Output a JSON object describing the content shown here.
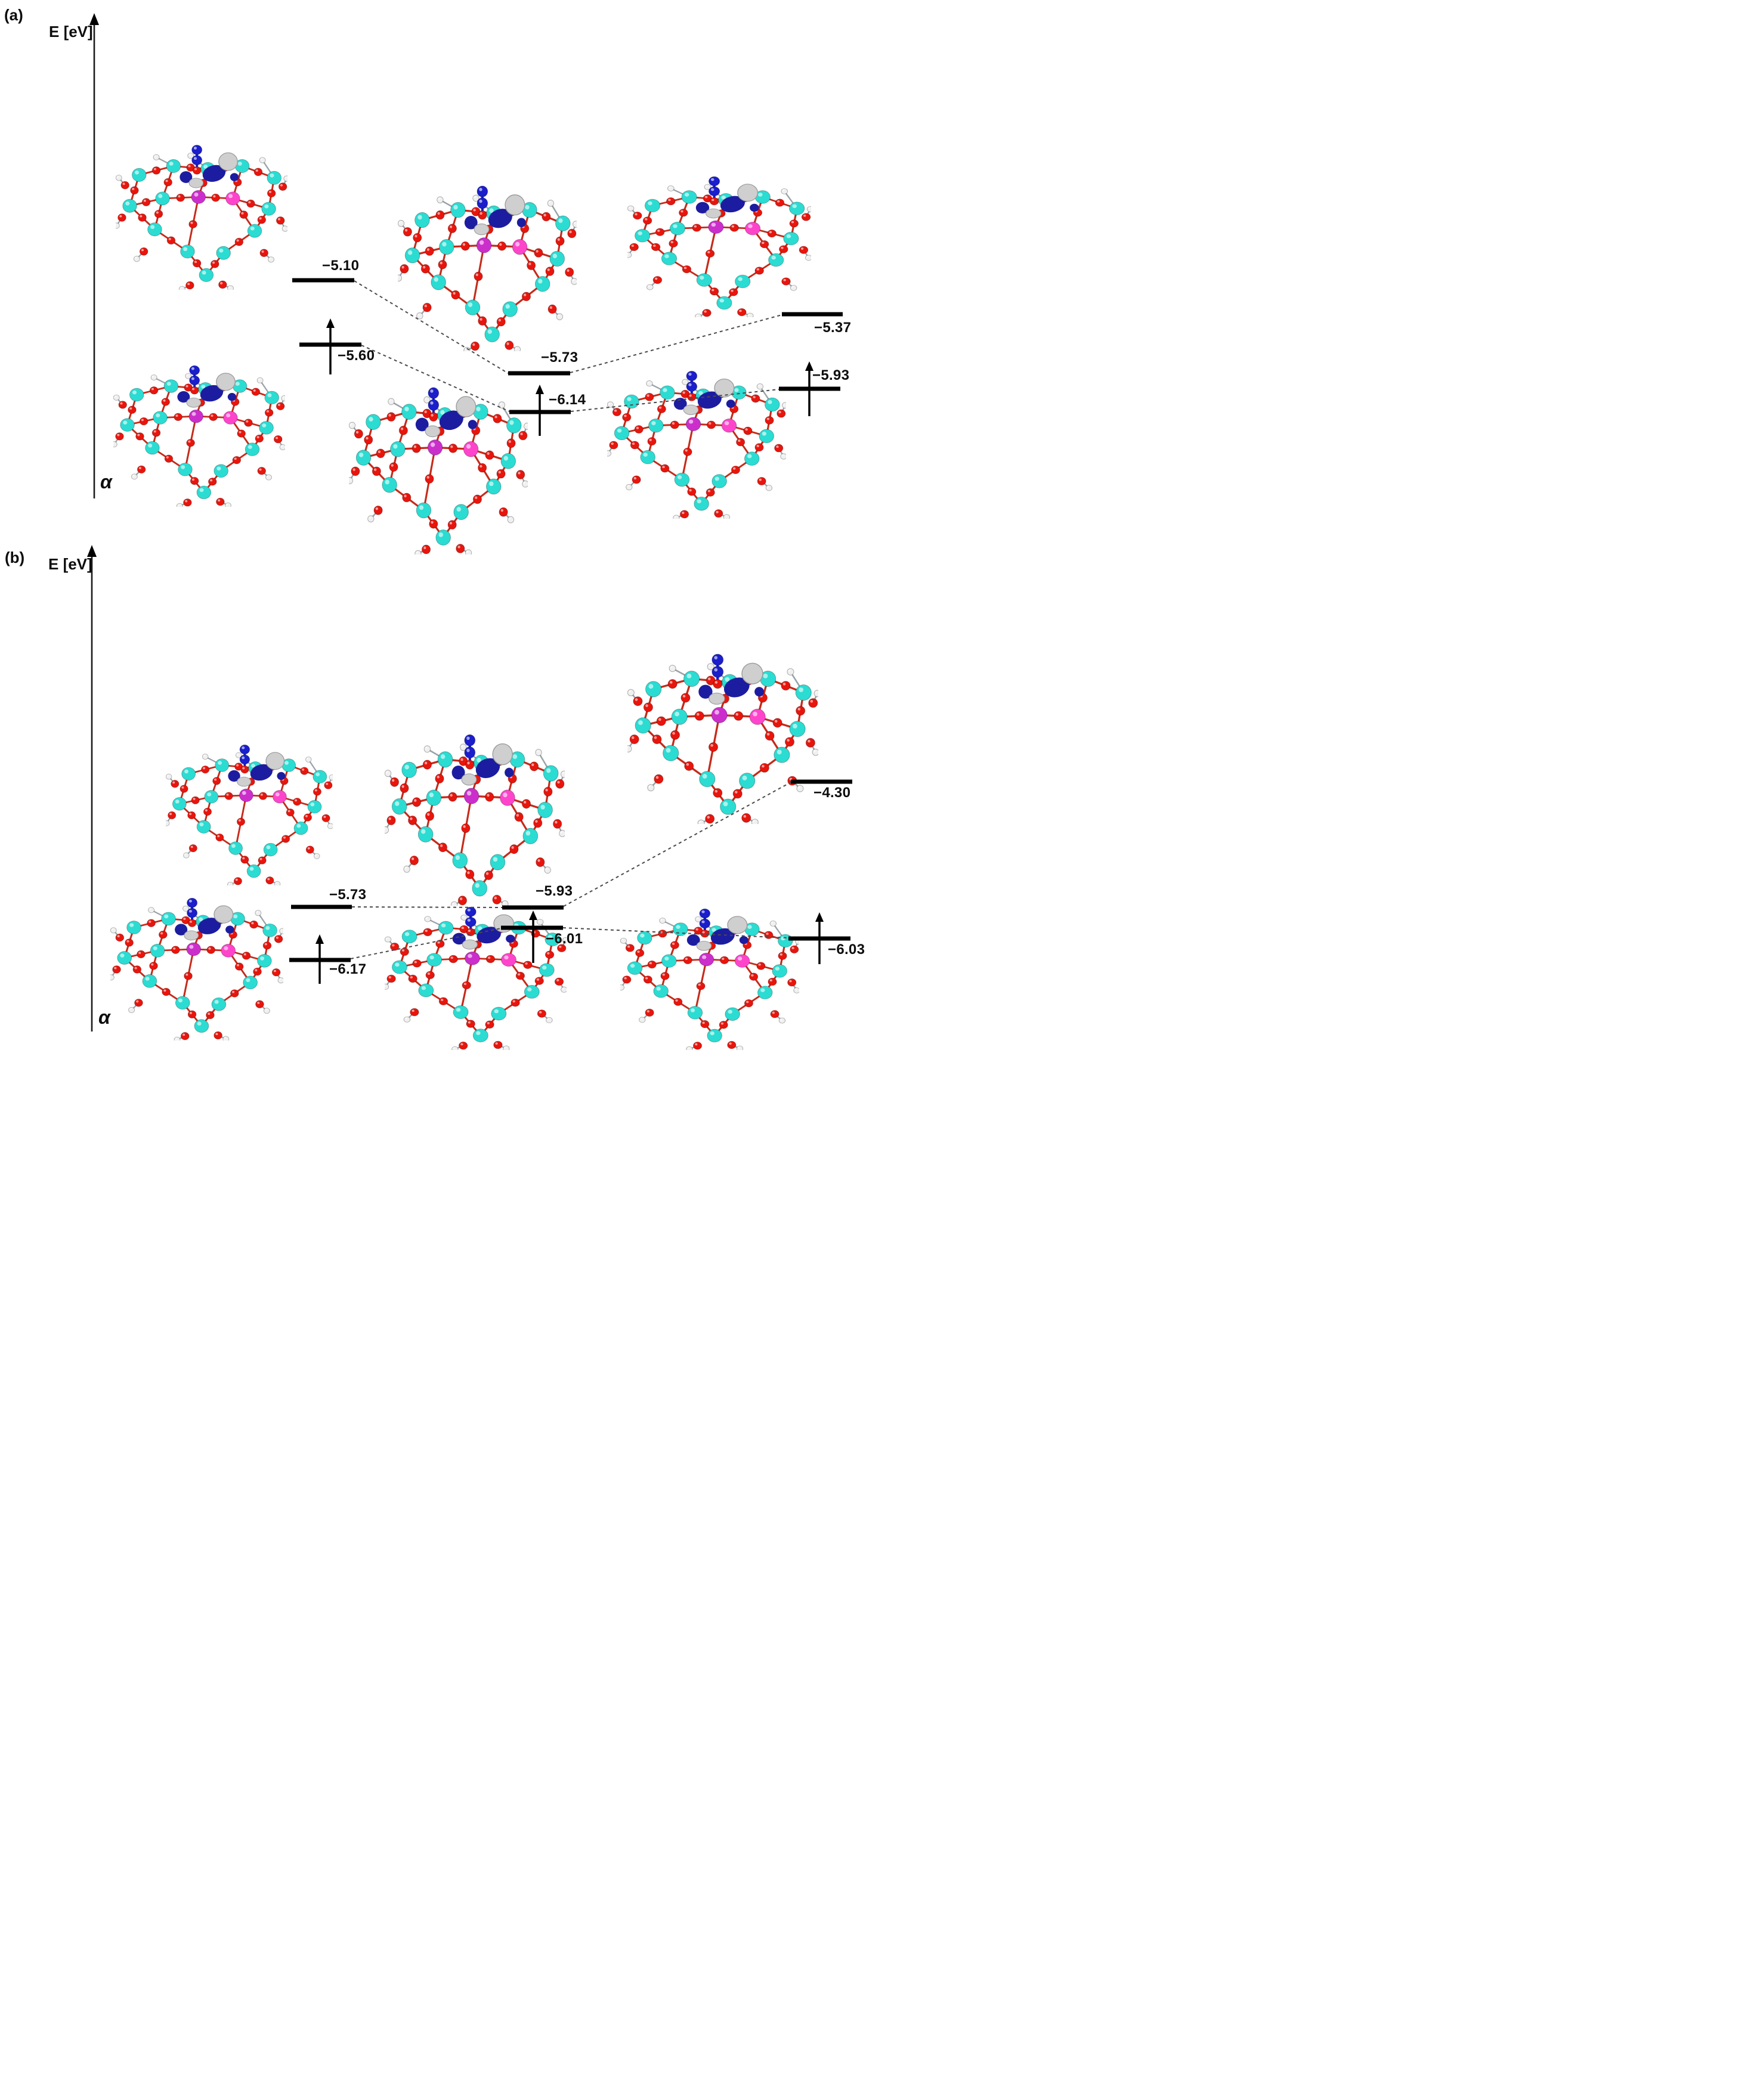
{
  "figure": {
    "type": "spin-resolved molecular orbital energy level diagram",
    "energy_unit": "eV",
    "molecule_description": "Ball-and-stick zeolite-type cluster models with adsorbed N2O molecule and blue/silver spin-density orbital isosurfaces",
    "palette": {
      "background": "#ffffff",
      "ink": "#0d0d0d",
      "dashed_line": "#4a4a4a",
      "atom_silicon": "#2bdcd2",
      "atom_oxygen": "#e8150c",
      "atom_hydrogen": "#f0f0f0",
      "atom_nitrogen": "#1a1ecb",
      "atom_dopant_1": "#cc2ecc",
      "atom_dopant_2": "#ff44cc",
      "bond": "#c62b1b",
      "bond_h": "#9aa3a8",
      "orbital_lobe_blue": "#1c1ca0",
      "orbital_lobe_silver": "#cfcfcf"
    },
    "panels": [
      {
        "label": "(a)",
        "axis_label": "E [eV]",
        "spin_channel": "α",
        "columns": [
          {
            "name": "left",
            "upper_level": {
              "value": "−5.10",
              "spin_arrow": false
            },
            "lower_level": {
              "value": "−5.60",
              "spin_arrow": true
            }
          },
          {
            "name": "middle",
            "upper_level": {
              "value": "−5.73",
              "spin_arrow": false
            },
            "lower_level": {
              "value": "−6.14",
              "spin_arrow": true
            }
          },
          {
            "name": "right",
            "upper_level": {
              "value": "−5.37",
              "spin_arrow": false
            },
            "lower_level": {
              "value": "−5.93",
              "spin_arrow": true
            }
          }
        ]
      },
      {
        "label": "(b)",
        "axis_label": "E [eV]",
        "spin_channel": "α",
        "columns": [
          {
            "name": "left",
            "upper_level": {
              "value": "−5.73",
              "spin_arrow": false
            },
            "lower_level": {
              "value": "−6.17",
              "spin_arrow": true
            }
          },
          {
            "name": "middle",
            "upper_level": {
              "value": "−5.93",
              "spin_arrow": false
            },
            "lower_level": {
              "value": "−6.01",
              "spin_arrow": true
            }
          },
          {
            "name": "right",
            "upper_level": {
              "value": "−4.30",
              "spin_arrow": false
            },
            "lower_level": {
              "value": "−6.03",
              "spin_arrow": true
            }
          }
        ]
      }
    ]
  },
  "chart_data": {
    "type": "energy-level-diagram",
    "unit": "eV",
    "spin_channel": "α",
    "panels": [
      {
        "id": "a",
        "columns": [
          "left",
          "middle",
          "right"
        ],
        "upper_levels": [
          -5.1,
          -5.73,
          -5.37
        ],
        "lower_levels_with_spin_arrow": [
          -5.6,
          -6.14,
          -5.93
        ],
        "connections": [
          [
            "left.upper",
            "middle.upper"
          ],
          [
            "left.lower",
            "middle.lower"
          ],
          [
            "middle.upper",
            "right.upper"
          ],
          [
            "middle.lower",
            "right.lower"
          ]
        ]
      },
      {
        "id": "b",
        "columns": [
          "left",
          "middle",
          "right"
        ],
        "upper_levels": [
          -5.73,
          -5.93,
          -4.3
        ],
        "lower_levels_with_spin_arrow": [
          -6.17,
          -6.01,
          -6.03
        ],
        "connections": [
          [
            "left.upper",
            "middle.upper"
          ],
          [
            "left.lower",
            "middle.lower"
          ],
          [
            "middle.upper",
            "right.upper"
          ],
          [
            "middle.lower",
            "right.lower"
          ]
        ]
      }
    ]
  }
}
